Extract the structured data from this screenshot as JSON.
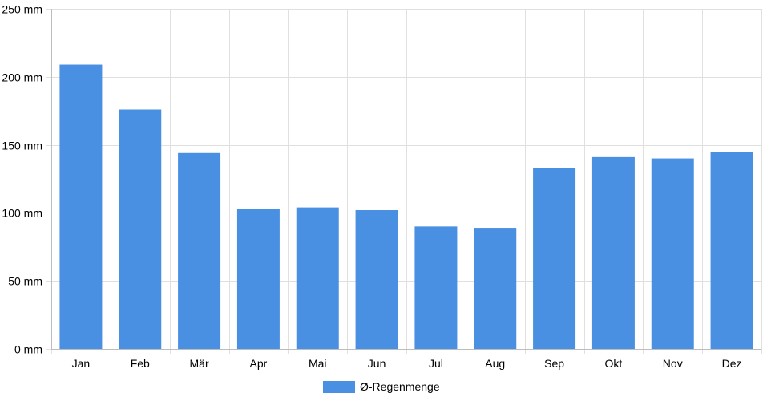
{
  "chart_data": {
    "type": "bar",
    "categories": [
      "Jan",
      "Feb",
      "Mär",
      "Apr",
      "Mai",
      "Jun",
      "Jul",
      "Aug",
      "Sep",
      "Okt",
      "Nov",
      "Dez"
    ],
    "series": [
      {
        "name": "Ø-Regenmenge",
        "color": "#4a90e2",
        "values": [
          209,
          176,
          144,
          103,
          104,
          102,
          90,
          89,
          133,
          141,
          140,
          145
        ]
      }
    ],
    "ylim": [
      0,
      250
    ],
    "yticks": [
      0,
      50,
      100,
      150,
      200,
      250
    ],
    "yunit": "mm",
    "grid": true,
    "legend_position": "bottom",
    "colors": {
      "bar": "#4a90e2",
      "grid": "#e0e0e0",
      "axis": "#bdbdbd",
      "text": "#000000"
    }
  }
}
